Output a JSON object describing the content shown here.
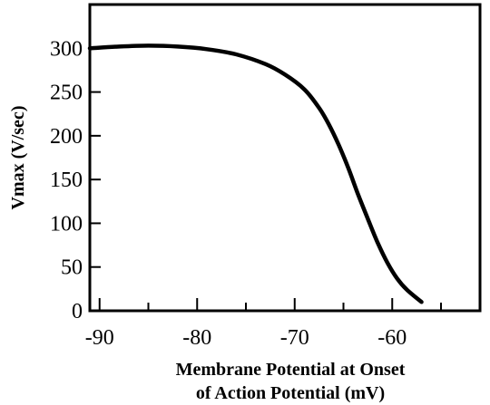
{
  "chart_data": {
    "type": "line",
    "title": "",
    "xlabel_lines": [
      "Membrane Potential at Onset",
      "of Action Potential (mV)"
    ],
    "ylabel": "Vmax (V/sec)",
    "xlim": [
      -91,
      -51
    ],
    "ylim": [
      0,
      350
    ],
    "x_ticks": [
      -90,
      -80,
      -70,
      -60
    ],
    "x_tick_labels": [
      "-90",
      "-80",
      "-70",
      "-60"
    ],
    "y_ticks": [
      0,
      50,
      100,
      150,
      200,
      250,
      300
    ],
    "y_tick_labels": [
      "0",
      "50",
      "100",
      "150",
      "200",
      "250",
      "300"
    ],
    "grid": false,
    "series": [
      {
        "color": "#000000",
        "x": [
          -91,
          -88,
          -85,
          -82,
          -79,
          -76,
          -73,
          -71,
          -69,
          -67.5,
          -66.5,
          -65.5,
          -64.5,
          -63.5,
          -62.5,
          -61.5,
          -60.5,
          -59.5,
          -58.5,
          -57
        ],
        "y": [
          300,
          302,
          303,
          302,
          299,
          293,
          282,
          270,
          253,
          232,
          213,
          190,
          163,
          133,
          105,
          78,
          55,
          37,
          24,
          10
        ]
      }
    ]
  }
}
